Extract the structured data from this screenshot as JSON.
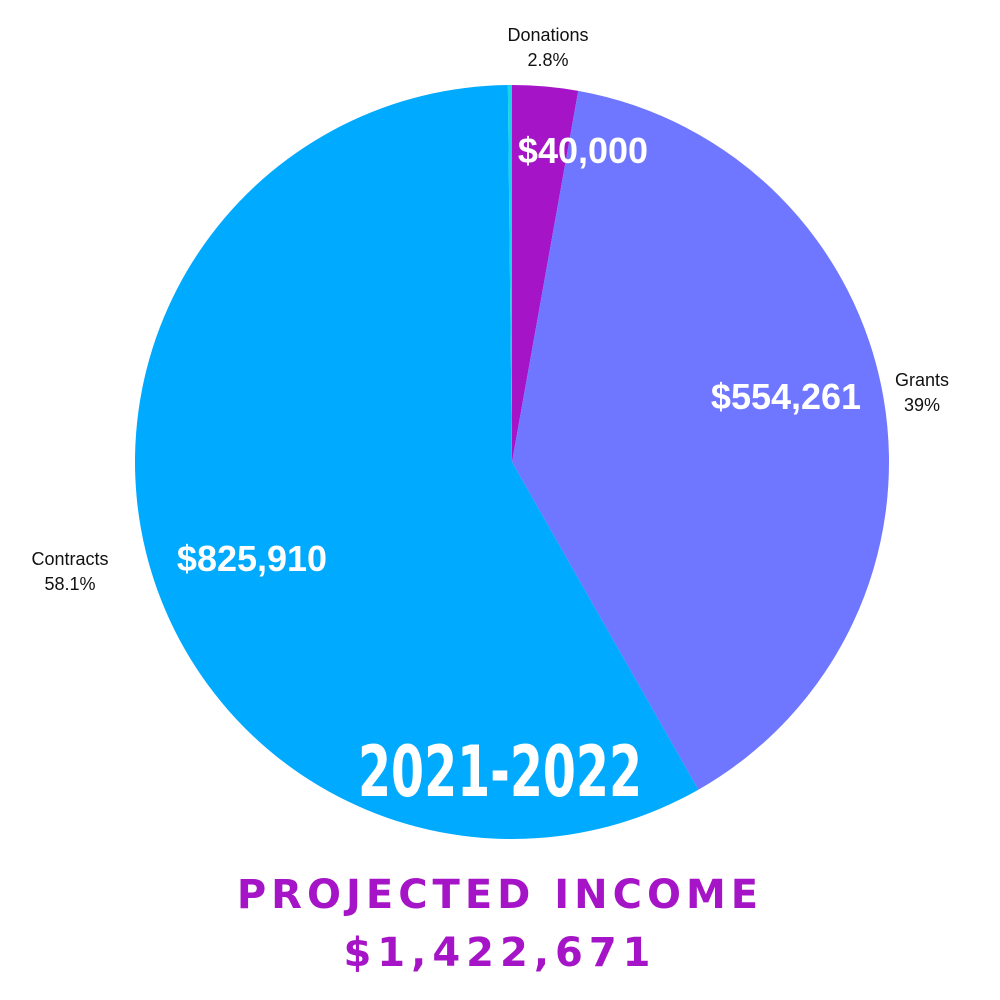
{
  "chart_data": {
    "type": "pie",
    "year_label": "2021-2022",
    "start_angle_deg": 0,
    "slices": [
      {
        "name": "Donations",
        "percent_label": "2.8%",
        "value": 40000,
        "value_label": "$40,000",
        "color": "#a514c6"
      },
      {
        "name": "Grants",
        "percent_label": "39%",
        "value": 554261,
        "value_label": "$554,261",
        "color": "#6f76ff"
      },
      {
        "name": "Contracts",
        "percent_label": "58.1%",
        "value": 825910,
        "value_label": "$825,910",
        "color": "#00aaff"
      },
      {
        "name": "",
        "percent_label": "",
        "value": 2500,
        "value_label": "",
        "color": "#19d3e6"
      }
    ]
  },
  "footer": {
    "title": "PROJECTED INCOME",
    "total": "$1,422,671"
  }
}
